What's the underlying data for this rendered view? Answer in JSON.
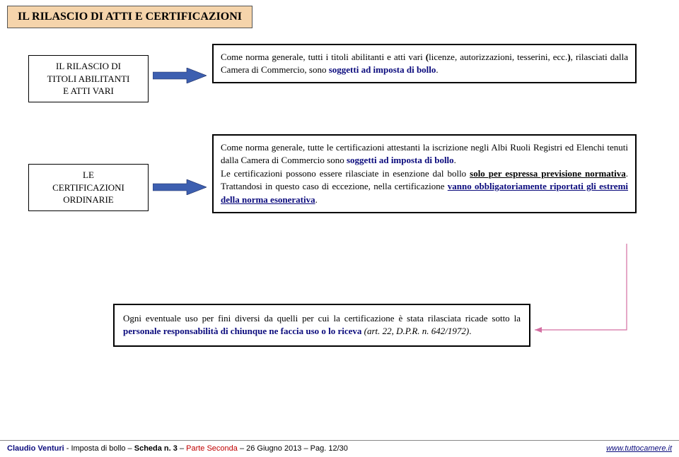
{
  "title": "IL RILASCIO DI ATTI E CERTIFICAZIONI",
  "row1": {
    "left_line1": "IL RILASCIO DI",
    "left_line2": "TITOLI ABILITANTI",
    "left_line3": "E ATTI VARI",
    "right_html": "Come norma generale, tutti i titoli abilitanti e atti vari <b class=\"paren\">(</b>licenze, autorizzazioni, tesserini, ecc.<b class=\"paren\">)</b>, rilasciati dalla Camera di Commercio, sono <span class=\"sogg\">soggetti ad imposta di bollo</span>."
  },
  "row2": {
    "left_line1": "LE",
    "left_line2": "CERTIFICAZIONI",
    "left_line3": "ORDINARIE",
    "right_html": "Come norma generale, tutte le certificazioni attestanti la iscrizione negli Albi Ruoli Registri ed Elenchi tenuti dalla Camera di Commercio sono <span class=\"sogg\">soggetti ad imposta di bollo</span>.<br>Le certificazioni possono essere rilasciate in esenzione dal bollo <span class=\"uline\">solo per espressa previsione normativa</span>. Trattandosi in questo caso di eccezione, nella certificazione <span class=\"vanno\">vanno obbligatoriamente riportati gli estremi della norma esonerativa</span>."
  },
  "bottom_html": "Ogni eventuale uso per fini diversi da quelli per cui la certificazione è stata rilasciata ricade sotto la <span class=\"resp\">personale responsabilità di chiunque ne faccia uso o lo riceva</span> <span class=\"art\">(art. 22, D.P.R. n. 642/1972)</span>.",
  "footer": {
    "left_html": "<span class=\"blue\">Claudio Venturi</span> - Imposta di bollo – <b>Scheda n. 3</b> – <span class=\"red\">Parte Seconda</span> – 26 Giugno 2013 – Pag. 12/30",
    "right_html": "<span class=\"link\">www.tuttocamere.it</span>"
  },
  "colors": {
    "title_bg": "#f5d4ab",
    "arrow_fill": "#3d5fb0",
    "thin_arrow": "#d46fa2",
    "blue_text": "#0b0b7d",
    "red_text": "#c00000"
  }
}
